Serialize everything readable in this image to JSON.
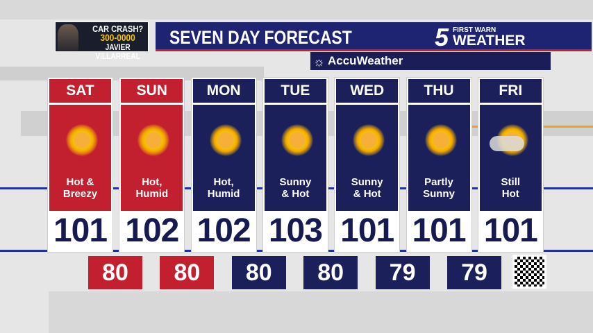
{
  "colors": {
    "red": "#c3202f",
    "navy": "#1b1f5a"
  },
  "promo": {
    "line1": "CAR CRASH?",
    "line2": "300-0000",
    "line3": "JAVIER VILLARREAL"
  },
  "header": {
    "title": "SEVEN DAY FORECAST",
    "logo_number": "5",
    "logo_small": "FIRST WARN",
    "logo_big": "WEATHER"
  },
  "sponsor": {
    "icon": "sun-icon",
    "label": "AccuWeather"
  },
  "days": [
    {
      "day": "SAT",
      "cond1": "Hot &",
      "cond2": "Breezy",
      "high": "101",
      "low": "80",
      "color": "red",
      "icon": "sunny"
    },
    {
      "day": "SUN",
      "cond1": "Hot,",
      "cond2": "Humid",
      "high": "102",
      "low": "80",
      "color": "red",
      "icon": "sunny"
    },
    {
      "day": "MON",
      "cond1": "Hot,",
      "cond2": "Humid",
      "high": "102",
      "low": "80",
      "color": "navy",
      "icon": "sunny"
    },
    {
      "day": "TUE",
      "cond1": "Sunny",
      "cond2": "& Hot",
      "high": "103",
      "low": "80",
      "color": "navy",
      "icon": "sunny"
    },
    {
      "day": "WED",
      "cond1": "Sunny",
      "cond2": "& Hot",
      "high": "101",
      "low": "79",
      "color": "navy",
      "icon": "sunny"
    },
    {
      "day": "THU",
      "cond1": "Partly",
      "cond2": "Sunny",
      "high": "101",
      "low": "79",
      "color": "navy",
      "icon": "sunny"
    },
    {
      "day": "FRI",
      "cond1": "Still",
      "cond2": "Hot",
      "high": "101",
      "color": "navy",
      "icon": "partly-cloudy"
    }
  ]
}
